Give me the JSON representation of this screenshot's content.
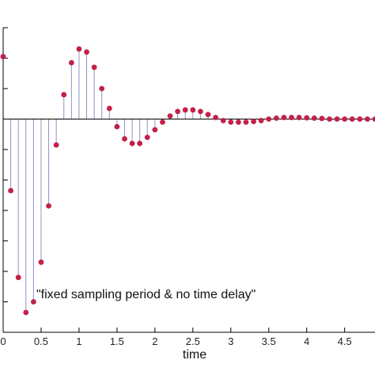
{
  "chart_data": {
    "type": "scatter",
    "style": "stem",
    "title": "",
    "xlabel": "time",
    "ylabel": "",
    "annotation": "\"fixed sampling period & no time delay\"",
    "xlim": [
      0,
      4.9
    ],
    "ylim": [
      -0.7,
      0.3
    ],
    "xticks": [
      0,
      0.5,
      1,
      1.5,
      2,
      2.5,
      3,
      3.5,
      4,
      4.5
    ],
    "xtick_labels": [
      "0",
      "0.5",
      "1",
      "1.5",
      "2",
      "2.5",
      "3",
      "3.5",
      "4",
      "4.5"
    ],
    "yticks": [
      -0.6,
      -0.5,
      -0.4,
      -0.3,
      -0.2,
      -0.1,
      0,
      0.1,
      0.2,
      0.3
    ],
    "grid": false,
    "colors": {
      "marker": "#c2204a",
      "stem": "#9090c8",
      "axis": "#000000"
    },
    "series": [
      {
        "x": [
          0,
          0.1,
          0.2,
          0.3,
          0.4,
          0.5,
          0.6,
          0.7,
          0.8,
          0.9,
          1.0,
          1.1,
          1.2,
          1.3,
          1.4,
          1.5,
          1.6,
          1.7,
          1.8,
          1.9,
          2.0,
          2.1,
          2.2,
          2.3,
          2.4,
          2.5,
          2.6,
          2.7,
          2.8,
          2.9,
          3.0,
          3.1,
          3.2,
          3.3,
          3.4,
          3.5,
          3.6,
          3.7,
          3.8,
          3.9,
          4.0,
          4.1,
          4.2,
          4.3,
          4.4,
          4.5,
          4.6,
          4.7,
          4.8,
          4.9
        ],
        "y": [
          0.205,
          -0.235,
          -0.52,
          -0.635,
          -0.6,
          -0.47,
          -0.285,
          -0.085,
          0.08,
          0.185,
          0.23,
          0.22,
          0.17,
          0.1,
          0.035,
          -0.025,
          -0.065,
          -0.08,
          -0.08,
          -0.06,
          -0.035,
          -0.01,
          0.01,
          0.025,
          0.03,
          0.03,
          0.025,
          0.015,
          0.005,
          -0.005,
          -0.01,
          -0.01,
          -0.01,
          -0.008,
          -0.005,
          0.0,
          0.003,
          0.005,
          0.005,
          0.005,
          0.004,
          0.003,
          0.002,
          0.0,
          0.0,
          0.0,
          0.0,
          0.0,
          0.0,
          0.0
        ]
      }
    ]
  }
}
